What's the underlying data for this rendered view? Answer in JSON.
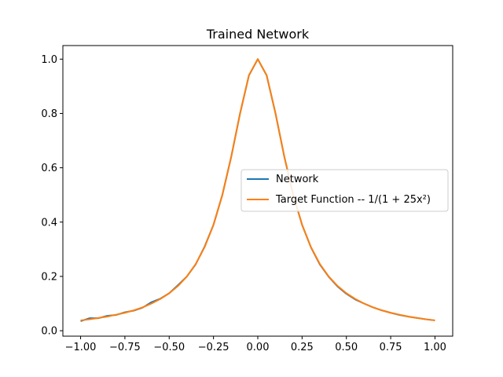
{
  "chart_data": {
    "type": "line",
    "title": "Trained Network",
    "xlabel": "",
    "ylabel": "",
    "xlim": [
      -1.1,
      1.1
    ],
    "ylim": [
      -0.02,
      1.05
    ],
    "x_ticks": [
      -1.0,
      -0.75,
      -0.5,
      -0.25,
      0.0,
      0.25,
      0.5,
      0.75,
      1.0
    ],
    "x_tick_labels": [
      "−1.00",
      "−0.75",
      "−0.50",
      "−0.25",
      "0.00",
      "0.25",
      "0.50",
      "0.75",
      "1.00"
    ],
    "y_ticks": [
      0.0,
      0.2,
      0.4,
      0.6,
      0.8,
      1.0
    ],
    "y_tick_labels": [
      "0.0",
      "0.2",
      "0.4",
      "0.6",
      "0.8",
      "1.0"
    ],
    "grid": false,
    "legend_position": "center-right",
    "series": [
      {
        "name": "Network",
        "color": "#1f77b4",
        "x": [
          -1.0,
          -0.95,
          -0.9,
          -0.85,
          -0.8,
          -0.75,
          -0.7,
          -0.65,
          -0.6,
          -0.55,
          -0.5,
          -0.45,
          -0.4,
          -0.35,
          -0.3,
          -0.25,
          -0.2,
          -0.15,
          -0.1,
          -0.05,
          0.0,
          0.05,
          0.1,
          0.15,
          0.2,
          0.25,
          0.3,
          0.35,
          0.4,
          0.45,
          0.5,
          0.55,
          0.6,
          0.65,
          0.7,
          0.75,
          0.8,
          0.85,
          0.9,
          0.95,
          1.0
        ],
        "y": [
          0.035,
          0.046,
          0.046,
          0.055,
          0.058,
          0.068,
          0.074,
          0.085,
          0.105,
          0.118,
          0.138,
          0.168,
          0.2,
          0.245,
          0.31,
          0.39,
          0.5,
          0.64,
          0.8,
          0.94,
          1.0,
          0.94,
          0.8,
          0.64,
          0.5,
          0.39,
          0.307,
          0.244,
          0.199,
          0.163,
          0.136,
          0.115,
          0.1,
          0.086,
          0.075,
          0.066,
          0.058,
          0.052,
          0.047,
          0.042,
          0.038
        ]
      },
      {
        "name": "Target Function -- 1/(1 + 25x²)",
        "color": "#ff7f0e",
        "x": [
          -1.0,
          -0.95,
          -0.9,
          -0.85,
          -0.8,
          -0.75,
          -0.7,
          -0.65,
          -0.6,
          -0.55,
          -0.5,
          -0.45,
          -0.4,
          -0.35,
          -0.3,
          -0.25,
          -0.2,
          -0.15,
          -0.1,
          -0.05,
          0.0,
          0.05,
          0.1,
          0.15,
          0.2,
          0.25,
          0.3,
          0.35,
          0.4,
          0.45,
          0.5,
          0.55,
          0.6,
          0.65,
          0.7,
          0.75,
          0.8,
          0.85,
          0.9,
          0.95,
          1.0
        ],
        "y": [
          0.038,
          0.042,
          0.047,
          0.052,
          0.059,
          0.066,
          0.075,
          0.086,
          0.1,
          0.117,
          0.138,
          0.165,
          0.2,
          0.246,
          0.308,
          0.39,
          0.5,
          0.64,
          0.8,
          0.941,
          1.0,
          0.941,
          0.8,
          0.64,
          0.5,
          0.39,
          0.308,
          0.246,
          0.2,
          0.165,
          0.138,
          0.117,
          0.1,
          0.086,
          0.075,
          0.066,
          0.059,
          0.052,
          0.047,
          0.042,
          0.038
        ]
      }
    ]
  },
  "legend": {
    "items": [
      {
        "label": "Network",
        "color": "#1f77b4"
      },
      {
        "label": "Target Function -- 1/(1 + 25x²)",
        "color": "#ff7f0e"
      }
    ]
  }
}
